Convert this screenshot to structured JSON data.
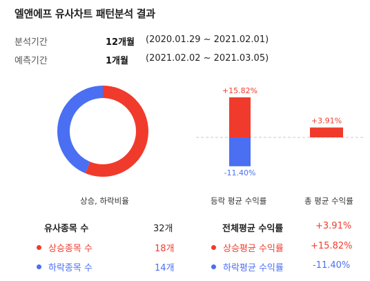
{
  "title": "엘앤에프 유사차트 패턴분석 결과",
  "analysis": {
    "label": "분석기간",
    "months": "12개월",
    "range": "(2020.01.29 ~ 2021.02.01)"
  },
  "forecast": {
    "label": "예측기간",
    "months": "1개월",
    "range": "(2021.02.02 ~ 2021.03.05)"
  },
  "colors": {
    "up": "#f03b2c",
    "down": "#4a6ff2"
  },
  "chart_data": [
    {
      "type": "pie",
      "title": "상승, 하락비율",
      "categories": [
        "상승종목",
        "하락종목"
      ],
      "values": [
        18,
        14
      ],
      "colors": [
        "#f03b2c",
        "#4a6ff2"
      ]
    },
    {
      "type": "bar",
      "title": "등락 평균 수익률",
      "categories": [
        "상승",
        "하락"
      ],
      "values": [
        15.82,
        -11.4
      ],
      "data_labels": [
        "+15.82%",
        "-11.40%"
      ]
    },
    {
      "type": "bar",
      "title": "총 평균 수익률",
      "categories": [
        "총"
      ],
      "values": [
        3.91
      ],
      "data_labels": [
        "+3.91%"
      ]
    }
  ],
  "captions": {
    "ratio": "상승, 하락비율",
    "avg_change": "등락 평균 수익률",
    "total_avg": "총 평균 수익률"
  },
  "stats": {
    "similar_count_label": "유사종목 수",
    "similar_count_value": "32개",
    "up_count_label": "상승종목 수",
    "up_count_value": "18개",
    "down_count_label": "하락종목 수",
    "down_count_value": "14개",
    "total_avg_label": "전체평균 수익률",
    "total_avg_value": "+3.91%",
    "up_avg_label": "상승평균 수익률",
    "up_avg_value": "+15.82%",
    "down_avg_label": "하락평균 수익률",
    "down_avg_value": "-11.40%"
  }
}
